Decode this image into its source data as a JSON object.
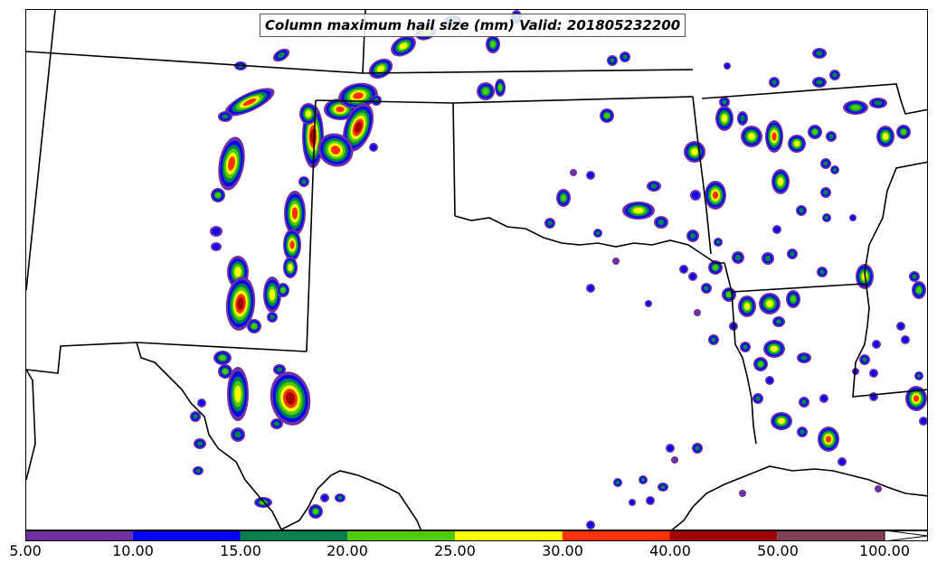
{
  "title": "Column maximum hail size (mm) Valid: 201805232200",
  "colorbar": {
    "labels": [
      "5.00",
      "10.00",
      "15.00",
      "20.00",
      "25.00",
      "30.00",
      "40.00",
      "50.00",
      "100.00"
    ],
    "colors": [
      "#7030a0",
      "#0000ff",
      "#007f4f",
      "#4ccc00",
      "#ffff00",
      "#ff3300",
      "#a00000",
      "#804055"
    ]
  },
  "palette": {
    "purple": "#7030a0",
    "blue": "#0000ff",
    "teal": "#007f4f",
    "green": "#4ccc00",
    "yellow": "#ffff00",
    "orange": "#ff3300",
    "darkred": "#a00000",
    "mauve": "#804055"
  }
}
